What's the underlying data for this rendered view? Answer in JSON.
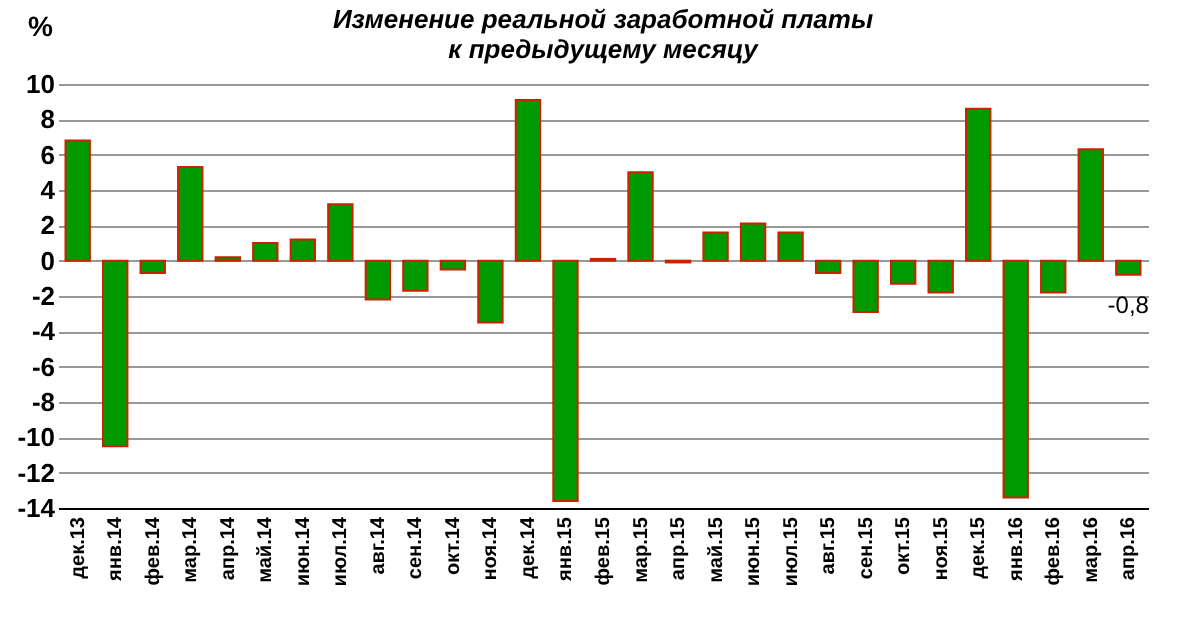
{
  "chart_data": {
    "type": "bar",
    "title": "Изменение реальной заработной платы\nк предыдущему месяцу",
    "ylabel": "%",
    "categories": [
      "дек.13",
      "янв.14",
      "фев.14",
      "мар.14",
      "апр.14",
      "май.14",
      "июн.14",
      "июл.14",
      "авг.14",
      "сен.14",
      "окт.14",
      "ноя.14",
      "дек.14",
      "янв.15",
      "фев.15",
      "мар.15",
      "апр.15",
      "май.15",
      "июн.15",
      "июл.15",
      "авг.15",
      "сен.15",
      "окт.15",
      "ноя.15",
      "дек.15",
      "янв.16",
      "фев.16",
      "мар.16",
      "апр.16"
    ],
    "values": [
      6.8,
      -10.5,
      -0.7,
      5.3,
      0.2,
      1.0,
      1.2,
      3.2,
      -2.2,
      -1.7,
      -0.5,
      -3.5,
      9.1,
      -13.6,
      0.1,
      5.0,
      -0.1,
      1.6,
      2.1,
      1.6,
      -0.7,
      -2.9,
      -1.3,
      -1.8,
      8.6,
      -13.4,
      -1.8,
      6.3,
      -0.8
    ],
    "value_labels": [
      null,
      null,
      null,
      null,
      null,
      null,
      null,
      null,
      null,
      null,
      null,
      null,
      null,
      null,
      null,
      null,
      null,
      null,
      null,
      null,
      null,
      null,
      null,
      null,
      null,
      null,
      null,
      null,
      "-0,8"
    ],
    "color": "#009900",
    "ylim": [
      -14,
      10
    ],
    "yticks": [
      -14,
      -12,
      -10,
      -8,
      -6,
      -4,
      -2,
      0,
      2,
      4,
      6,
      8,
      10
    ],
    "grid": "y"
  }
}
